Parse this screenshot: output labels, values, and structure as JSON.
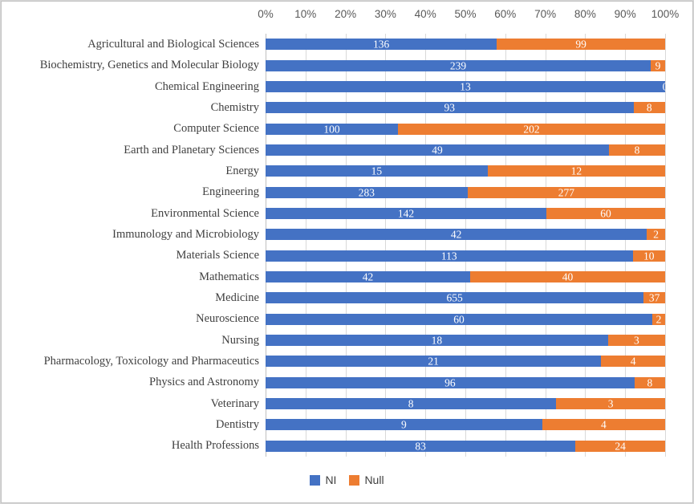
{
  "chart_data": {
    "type": "bar",
    "orientation": "horizontal",
    "stacking": "100%",
    "categories": [
      "Agricultural and Biological Sciences",
      "Biochemistry, Genetics and Molecular Biology",
      "Chemical Engineering",
      "Chemistry",
      "Computer Science",
      "Earth and Planetary Sciences",
      "Energy",
      "Engineering",
      "Environmental Science",
      "Immunology and Microbiology",
      "Materials Science",
      "Mathematics",
      "Medicine",
      "Neuroscience",
      "Nursing",
      "Pharmacology, Toxicology and Pharmaceutics",
      "Physics and Astronomy",
      "Veterinary",
      "Dentistry",
      "Health Professions"
    ],
    "series": [
      {
        "name": "NI",
        "color": "#4472C4",
        "values": [
          136,
          239,
          13,
          93,
          100,
          49,
          15,
          283,
          142,
          42,
          113,
          42,
          655,
          60,
          18,
          21,
          96,
          8,
          9,
          83
        ]
      },
      {
        "name": "Null",
        "color": "#ED7D31",
        "values": [
          99,
          9,
          0,
          8,
          202,
          8,
          12,
          277,
          60,
          2,
          10,
          40,
          37,
          2,
          3,
          4,
          8,
          3,
          4,
          24
        ]
      }
    ],
    "x_axis": {
      "position": "top",
      "ticks": [
        "0%",
        "10%",
        "20%",
        "30%",
        "40%",
        "50%",
        "60%",
        "70%",
        "80%",
        "90%",
        "100%"
      ],
      "range": [
        0,
        100
      ]
    },
    "grid": true,
    "legend_position": "bottom",
    "data_labels": true,
    "data_label_color": "#FFFFFF"
  },
  "styles": {
    "gridline_color": "#D9D9D9",
    "axis_line_color": "#BFBFBF",
    "axis_text_color": "#595959",
    "category_text_color": "#404040",
    "border_color": "#C8C8C8",
    "background": "#FFFFFF"
  }
}
